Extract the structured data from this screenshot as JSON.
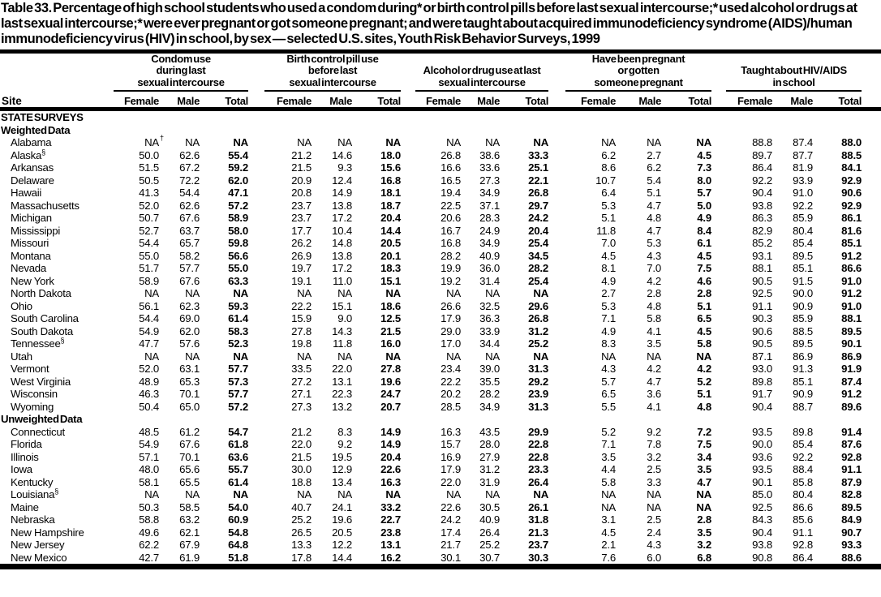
{
  "title": "Table 33. Percentage of high school students who used a condom during* or birth control pills before last sexual intercourse;* used alcohol or drugs at last sexual intercourse;* were ever pregnant or got someone pregnant; and were taught about acquired immunodeficiency syndrome (AIDS)/human immunodeficiency virus (HIV) in school, by sex — selected U.S. sites, Youth Risk Behavior Surveys, 1999",
  "header": {
    "site_label": "Site",
    "groups": [
      {
        "label_lines": [
          "Condom use",
          "during last",
          "sexual intercourse"
        ],
        "sub": [
          "Female",
          "Male",
          "Total"
        ]
      },
      {
        "label_lines": [
          "Birth control pill use",
          "before last",
          "sexual intercourse"
        ],
        "sub": [
          "Female",
          "Male",
          "Total"
        ]
      },
      {
        "label_lines": [
          "Alcohol or drug use at last",
          "sexual intercourse"
        ],
        "sub": [
          "Female",
          "Male",
          "Total"
        ]
      },
      {
        "label_lines": [
          "Have been pregnant",
          "or gotten",
          "someone pregnant"
        ],
        "sub": [
          "Female",
          "Male",
          "Total"
        ]
      },
      {
        "label_lines": [
          "Taught about HIV/AIDS",
          "in school"
        ],
        "sub": [
          "Female",
          "Male",
          "Total"
        ]
      }
    ]
  },
  "sections": [
    {
      "headings": [
        "STATE SURVEYS",
        "Weighted Data"
      ],
      "rows": [
        {
          "site": "Alabama",
          "sup": "",
          "values": [
            "NA†",
            "NA",
            "NA",
            "NA",
            "NA",
            "NA",
            "NA",
            "NA",
            "NA",
            "NA",
            "NA",
            "NA",
            "88.8",
            "87.4",
            "88.0"
          ]
        },
        {
          "site": "Alaska",
          "sup": "§",
          "values": [
            "50.0",
            "62.6",
            "55.4",
            "21.2",
            "14.6",
            "18.0",
            "26.8",
            "38.6",
            "33.3",
            "6.2",
            "2.7",
            "4.5",
            "89.7",
            "87.7",
            "88.5"
          ]
        },
        {
          "site": "Arkansas",
          "sup": "",
          "values": [
            "51.5",
            "67.2",
            "59.2",
            "21.5",
            "9.3",
            "15.6",
            "16.6",
            "33.6",
            "25.1",
            "8.6",
            "6.2",
            "7.3",
            "86.4",
            "81.9",
            "84.1"
          ]
        },
        {
          "site": "Delaware",
          "sup": "",
          "values": [
            "50.5",
            "72.2",
            "62.0",
            "20.9",
            "12.4",
            "16.8",
            "16.5",
            "27.3",
            "22.1",
            "10.7",
            "5.4",
            "8.0",
            "92.2",
            "93.9",
            "92.9"
          ]
        },
        {
          "site": "Hawaii",
          "sup": "",
          "values": [
            "41.3",
            "54.4",
            "47.1",
            "20.8",
            "14.9",
            "18.1",
            "19.4",
            "34.9",
            "26.8",
            "6.4",
            "5.1",
            "5.7",
            "90.4",
            "91.0",
            "90.6"
          ]
        },
        {
          "site": "Massachusetts",
          "sup": "",
          "values": [
            "52.0",
            "62.6",
            "57.2",
            "23.7",
            "13.8",
            "18.7",
            "22.5",
            "37.1",
            "29.7",
            "5.3",
            "4.7",
            "5.0",
            "93.8",
            "92.2",
            "92.9"
          ]
        },
        {
          "site": "Michigan",
          "sup": "",
          "values": [
            "50.7",
            "67.6",
            "58.9",
            "23.7",
            "17.2",
            "20.4",
            "20.6",
            "28.3",
            "24.2",
            "5.1",
            "4.8",
            "4.9",
            "86.3",
            "85.9",
            "86.1"
          ]
        },
        {
          "site": "Mississippi",
          "sup": "",
          "values": [
            "52.7",
            "63.7",
            "58.0",
            "17.7",
            "10.4",
            "14.4",
            "16.7",
            "24.9",
            "20.4",
            "11.8",
            "4.7",
            "8.4",
            "82.9",
            "80.4",
            "81.6"
          ]
        },
        {
          "site": "Missouri",
          "sup": "",
          "values": [
            "54.4",
            "65.7",
            "59.8",
            "26.2",
            "14.8",
            "20.5",
            "16.8",
            "34.9",
            "25.4",
            "7.0",
            "5.3",
            "6.1",
            "85.2",
            "85.4",
            "85.1"
          ]
        },
        {
          "site": "Montana",
          "sup": "",
          "values": [
            "55.0",
            "58.2",
            "56.6",
            "26.9",
            "13.8",
            "20.1",
            "28.2",
            "40.9",
            "34.5",
            "4.5",
            "4.3",
            "4.5",
            "93.1",
            "89.5",
            "91.2"
          ]
        },
        {
          "site": "Nevada",
          "sup": "",
          "values": [
            "51.7",
            "57.7",
            "55.0",
            "19.7",
            "17.2",
            "18.3",
            "19.9",
            "36.0",
            "28.2",
            "8.1",
            "7.0",
            "7.5",
            "88.1",
            "85.1",
            "86.6"
          ]
        },
        {
          "site": "New York",
          "sup": "",
          "values": [
            "58.9",
            "67.6",
            "63.3",
            "19.1",
            "11.0",
            "15.1",
            "19.2",
            "31.4",
            "25.4",
            "4.9",
            "4.2",
            "4.6",
            "90.5",
            "91.5",
            "91.0"
          ]
        },
        {
          "site": "North Dakota",
          "sup": "",
          "values": [
            "NA",
            "NA",
            "NA",
            "NA",
            "NA",
            "NA",
            "NA",
            "NA",
            "NA",
            "2.7",
            "2.8",
            "2.8",
            "92.5",
            "90.0",
            "91.2"
          ]
        },
        {
          "site": "Ohio",
          "sup": "",
          "values": [
            "56.1",
            "62.3",
            "59.3",
            "22.2",
            "15.1",
            "18.6",
            "26.6",
            "32.5",
            "29.6",
            "5.3",
            "4.8",
            "5.1",
            "91.1",
            "90.9",
            "91.0"
          ]
        },
        {
          "site": "South Carolina",
          "sup": "",
          "values": [
            "54.4",
            "69.0",
            "61.4",
            "15.9",
            "9.0",
            "12.5",
            "17.9",
            "36.3",
            "26.8",
            "7.1",
            "5.8",
            "6.5",
            "90.3",
            "85.9",
            "88.1"
          ]
        },
        {
          "site": "South Dakota",
          "sup": "",
          "values": [
            "54.9",
            "62.0",
            "58.3",
            "27.8",
            "14.3",
            "21.5",
            "29.0",
            "33.9",
            "31.2",
            "4.9",
            "4.1",
            "4.5",
            "90.6",
            "88.5",
            "89.5"
          ]
        },
        {
          "site": "Tennessee",
          "sup": "§",
          "values": [
            "47.7",
            "57.6",
            "52.3",
            "19.8",
            "11.8",
            "16.0",
            "17.0",
            "34.4",
            "25.2",
            "8.3",
            "3.5",
            "5.8",
            "90.5",
            "89.5",
            "90.1"
          ]
        },
        {
          "site": "Utah",
          "sup": "",
          "values": [
            "NA",
            "NA",
            "NA",
            "NA",
            "NA",
            "NA",
            "NA",
            "NA",
            "NA",
            "NA",
            "NA",
            "NA",
            "87.1",
            "86.9",
            "86.9"
          ]
        },
        {
          "site": "Vermont",
          "sup": "",
          "values": [
            "52.0",
            "63.1",
            "57.7",
            "33.5",
            "22.0",
            "27.8",
            "23.4",
            "39.0",
            "31.3",
            "4.3",
            "4.2",
            "4.2",
            "93.0",
            "91.3",
            "91.9"
          ]
        },
        {
          "site": "West Virginia",
          "sup": "",
          "values": [
            "48.9",
            "65.3",
            "57.3",
            "27.2",
            "13.1",
            "19.6",
            "22.2",
            "35.5",
            "29.2",
            "5.7",
            "4.7",
            "5.2",
            "89.8",
            "85.1",
            "87.4"
          ]
        },
        {
          "site": "Wisconsin",
          "sup": "",
          "values": [
            "46.3",
            "70.1",
            "57.7",
            "27.1",
            "22.3",
            "24.7",
            "20.2",
            "28.2",
            "23.9",
            "6.5",
            "3.6",
            "5.1",
            "91.7",
            "90.9",
            "91.2"
          ]
        },
        {
          "site": "Wyoming",
          "sup": "",
          "values": [
            "50.4",
            "65.0",
            "57.2",
            "27.3",
            "13.2",
            "20.7",
            "28.5",
            "34.9",
            "31.3",
            "5.5",
            "4.1",
            "4.8",
            "90.4",
            "88.7",
            "89.6"
          ]
        }
      ]
    },
    {
      "headings": [
        "Unweighted Data"
      ],
      "rows": [
        {
          "site": "Connecticut",
          "sup": "",
          "values": [
            "48.5",
            "61.2",
            "54.7",
            "21.2",
            "8.3",
            "14.9",
            "16.3",
            "43.5",
            "29.9",
            "5.2",
            "9.2",
            "7.2",
            "93.5",
            "89.8",
            "91.4"
          ]
        },
        {
          "site": "Florida",
          "sup": "",
          "values": [
            "54.9",
            "67.6",
            "61.8",
            "22.0",
            "9.2",
            "14.9",
            "15.7",
            "28.0",
            "22.8",
            "7.1",
            "7.8",
            "7.5",
            "90.0",
            "85.4",
            "87.6"
          ]
        },
        {
          "site": "Illinois",
          "sup": "",
          "values": [
            "57.1",
            "70.1",
            "63.6",
            "21.5",
            "19.5",
            "20.4",
            "16.9",
            "27.9",
            "22.8",
            "3.5",
            "3.2",
            "3.4",
            "93.6",
            "92.2",
            "92.8"
          ]
        },
        {
          "site": "Iowa",
          "sup": "",
          "values": [
            "48.0",
            "65.6",
            "55.7",
            "30.0",
            "12.9",
            "22.6",
            "17.9",
            "31.2",
            "23.3",
            "4.4",
            "2.5",
            "3.5",
            "93.5",
            "88.4",
            "91.1"
          ]
        },
        {
          "site": "Kentucky",
          "sup": "",
          "values": [
            "58.1",
            "65.5",
            "61.4",
            "18.8",
            "13.4",
            "16.3",
            "22.0",
            "31.9",
            "26.4",
            "5.8",
            "3.3",
            "4.7",
            "90.1",
            "85.8",
            "87.9"
          ]
        },
        {
          "site": "Louisiana",
          "sup": "§",
          "values": [
            "NA",
            "NA",
            "NA",
            "NA",
            "NA",
            "NA",
            "NA",
            "NA",
            "NA",
            "NA",
            "NA",
            "NA",
            "85.0",
            "80.4",
            "82.8"
          ]
        },
        {
          "site": "Maine",
          "sup": "",
          "values": [
            "50.3",
            "58.5",
            "54.0",
            "40.7",
            "24.1",
            "33.2",
            "22.6",
            "30.5",
            "26.1",
            "NA",
            "NA",
            "NA",
            "92.5",
            "86.6",
            "89.5"
          ]
        },
        {
          "site": "Nebraska",
          "sup": "",
          "values": [
            "58.8",
            "63.2",
            "60.9",
            "25.2",
            "19.6",
            "22.7",
            "24.2",
            "40.9",
            "31.8",
            "3.1",
            "2.5",
            "2.8",
            "84.3",
            "85.6",
            "84.9"
          ]
        },
        {
          "site": "New Hampshire",
          "sup": "",
          "values": [
            "49.6",
            "62.1",
            "54.8",
            "26.5",
            "20.5",
            "23.8",
            "17.4",
            "26.4",
            "21.3",
            "4.5",
            "2.4",
            "3.5",
            "90.4",
            "91.1",
            "90.7"
          ]
        },
        {
          "site": "New Jersey",
          "sup": "",
          "values": [
            "62.2",
            "67.9",
            "64.8",
            "13.3",
            "12.2",
            "13.1",
            "21.7",
            "25.2",
            "23.7",
            "2.1",
            "4.3",
            "3.2",
            "93.8",
            "92.8",
            "93.3"
          ]
        },
        {
          "site": "New Mexico",
          "sup": "",
          "values": [
            "42.7",
            "61.9",
            "51.8",
            "17.8",
            "14.4",
            "16.2",
            "30.1",
            "30.7",
            "30.3",
            "7.6",
            "6.0",
            "6.8",
            "90.8",
            "86.4",
            "88.6"
          ]
        }
      ]
    }
  ]
}
